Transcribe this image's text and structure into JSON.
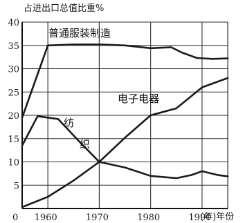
{
  "chart_data": {
    "type": "line",
    "ylabel": "占进出口总值比重%",
    "xlabel": "(年)年份",
    "ylim": [
      0,
      40
    ],
    "y_ticks": [
      "5",
      "10",
      "15",
      "20",
      "25",
      "30",
      "35",
      "40"
    ],
    "x_origin_label": "0",
    "x_ticks": [
      "1960",
      "1970",
      "1980",
      "1990"
    ],
    "x_ticks_values": [
      1960,
      1970,
      1980,
      1990
    ],
    "xlim": [
      1955,
      1995
    ],
    "grid": true,
    "series": [
      {
        "name": "普通服装制造",
        "x": [
          1955,
          1960,
          1965,
          1970,
          1975,
          1980,
          1984,
          1986,
          1989,
          1992,
          1995
        ],
        "y": [
          19.5,
          35,
          35.2,
          35.2,
          35,
          34.4,
          34.6,
          33.5,
          32.3,
          32.1,
          32.2
        ]
      },
      {
        "name": "纺织",
        "x": [
          1955,
          1958,
          1962,
          1966,
          1970,
          1975,
          1980,
          1985,
          1988,
          1990,
          1993,
          1995
        ],
        "y": [
          13.5,
          19.8,
          19.2,
          14.5,
          10,
          8.8,
          7,
          6.5,
          7.2,
          8,
          7.2,
          6.9
        ]
      },
      {
        "name": "电子电器",
        "x": [
          1955,
          1960,
          1965,
          1970,
          1975,
          1980,
          1985,
          1990,
          1995
        ],
        "y": [
          0.3,
          2.5,
          6,
          10,
          15.2,
          20,
          21.5,
          26,
          28
        ]
      }
    ],
    "labels": {
      "clothing": "普通服装制造",
      "electronics": "电子电器",
      "textile_1": "纺",
      "textile_2": "织"
    }
  }
}
